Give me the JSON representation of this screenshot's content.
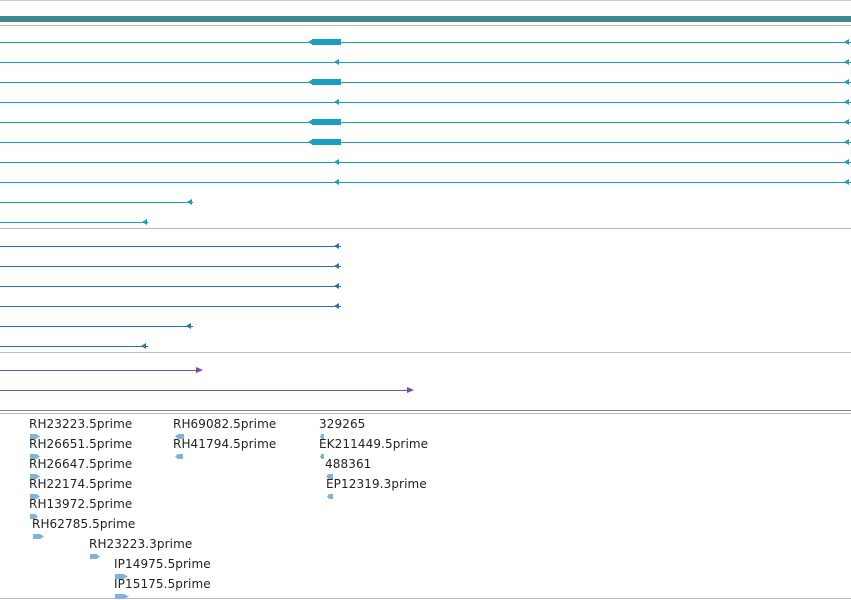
{
  "colors": {
    "gene_band": "#3a8a8f",
    "transcript": "#1b9dbf",
    "cds": "#1b9dbf",
    "protein": "#2f6fb3",
    "rna": "#7a4fa0",
    "est": "#7fb3dc",
    "divider": "#bbbbbb",
    "text": "#222222"
  },
  "est_labels": [
    {
      "label": "RH23223.5prime",
      "dir": "right",
      "icon": "est-forward-arrow"
    },
    {
      "label": "RH26651.5prime",
      "dir": "right",
      "icon": "est-forward-arrow"
    },
    {
      "label": "RH26647.5prime",
      "dir": "right",
      "icon": "est-forward-arrow"
    },
    {
      "label": "RH22174.5prime",
      "dir": "right",
      "icon": "est-forward-arrow"
    },
    {
      "label": "RH13972.5prime",
      "dir": "right",
      "icon": "est-forward-arrow"
    },
    {
      "label": "RH62785.5prime",
      "dir": "right",
      "icon": "est-forward-arrow"
    },
    {
      "label": "RH23223.3prime",
      "dir": "right",
      "icon": "est-forward-arrow"
    },
    {
      "label": "IP14975.5prime",
      "dir": "right",
      "icon": "est-forward-arrow"
    },
    {
      "label": "IP15175.5prime",
      "dir": "right",
      "icon": "est-forward-arrow"
    },
    {
      "label": "RH69082.5prime",
      "dir": "left",
      "icon": "est-reverse-arrow"
    },
    {
      "label": "RH41794.5prime",
      "dir": "left",
      "icon": "est-reverse-arrow"
    },
    {
      "label": "329265",
      "dir": "left",
      "icon": "est-reverse-arrow"
    },
    {
      "label": "EK211449.5prime",
      "dir": "left",
      "icon": "est-reverse-arrow"
    },
    {
      "label": "488361",
      "dir": "left",
      "icon": "est-reverse-arrow"
    },
    {
      "label": "EP12319.3prime",
      "dir": "left",
      "icon": "est-reverse-arrow"
    }
  ]
}
